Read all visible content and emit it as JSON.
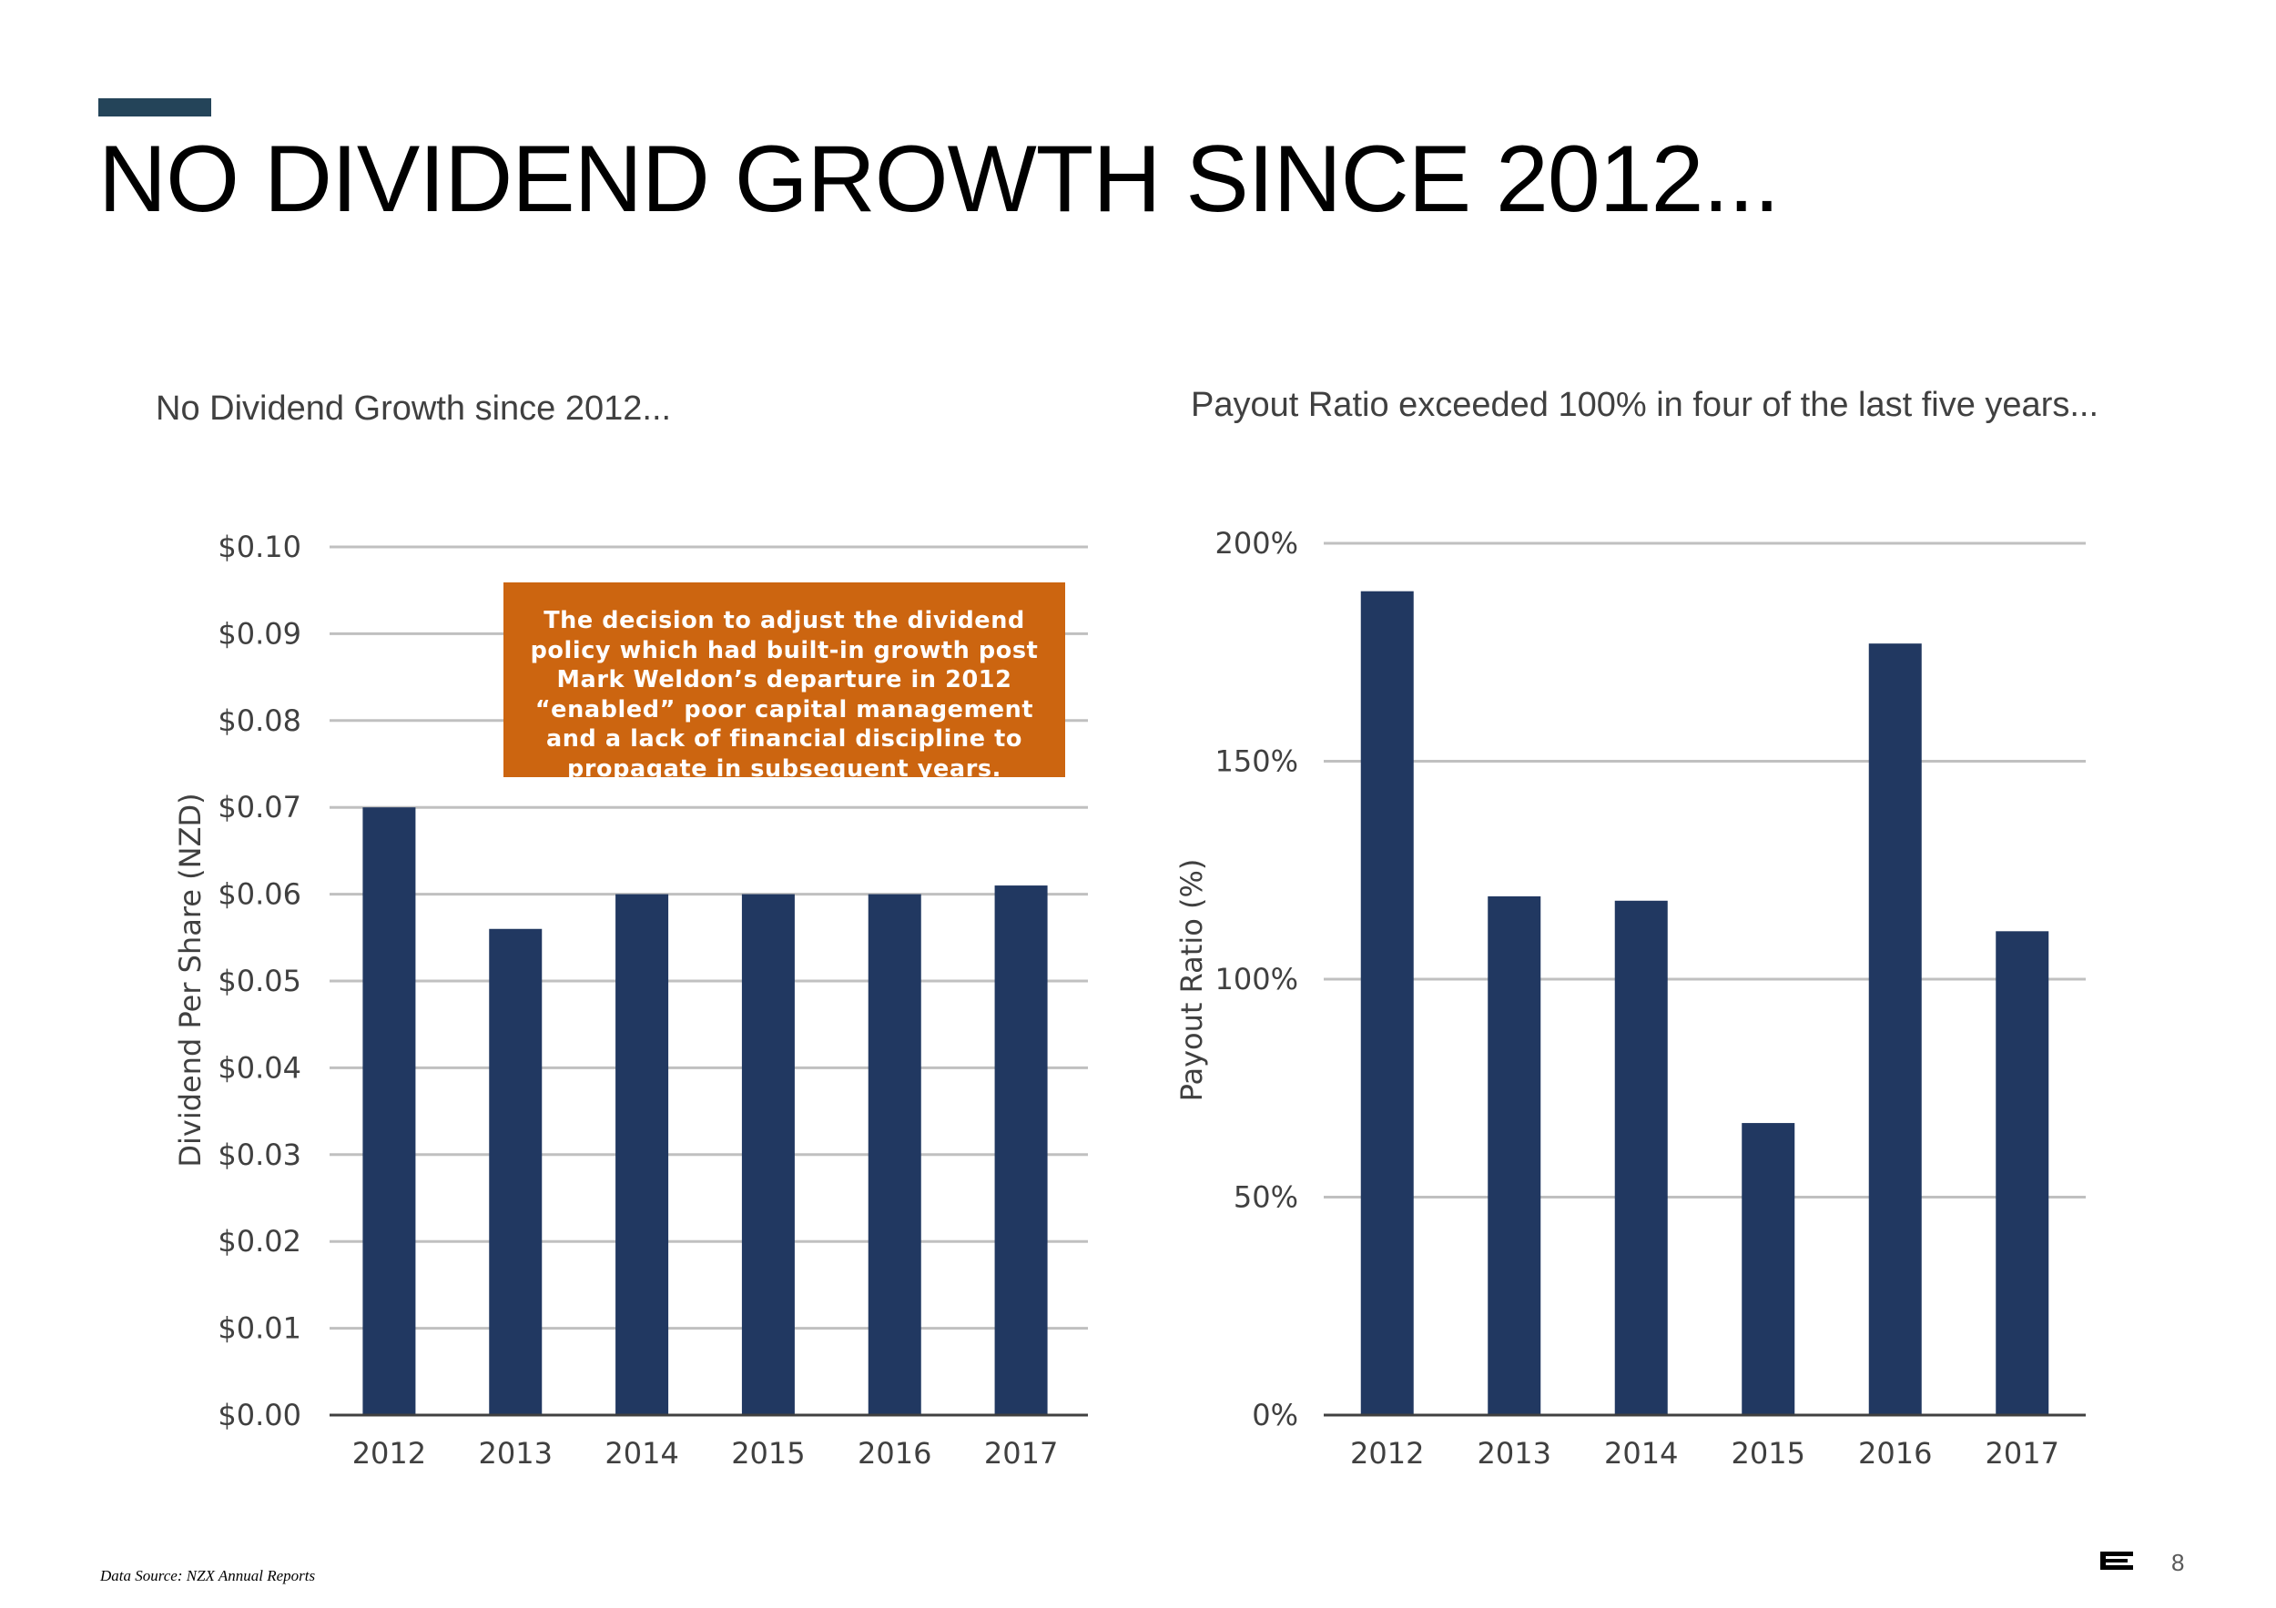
{
  "title": "NO DIVIDEND GROWTH SINCE 2012...",
  "footer": {
    "source": "Data Source: NZX Annual Reports",
    "page_number": "8",
    "logo_icon": "company-logo-icon"
  },
  "annotation": "The decision to adjust the dividend policy which had built-in growth post Mark Weldon’s departure in 2012 “enabled” poor capital management and a lack of financial discipline to propagate in subsequent years.",
  "colors": {
    "bar": "#213861",
    "accent": "#244459",
    "annotation_bg": "#cc6510",
    "grid": "#c0c0c0"
  },
  "chart_data": [
    {
      "type": "bar",
      "title": "No Dividend Growth since 2012...",
      "xlabel": "",
      "ylabel": "Dividend Per Share (NZD)",
      "categories": [
        "2012",
        "2013",
        "2014",
        "2015",
        "2016",
        "2017"
      ],
      "values": [
        0.07,
        0.056,
        0.06,
        0.06,
        0.06,
        0.061
      ],
      "ylim": [
        0,
        0.1
      ],
      "yticks": [
        "$0.00",
        "$0.01",
        "$0.02",
        "$0.03",
        "$0.04",
        "$0.05",
        "$0.06",
        "$0.07",
        "$0.08",
        "$0.09",
        "$0.10"
      ],
      "grid": true
    },
    {
      "type": "bar",
      "title": "Payout Ratio exceeded 100% in four of the last five years...",
      "xlabel": "",
      "ylabel": "Payout Ratio (%)",
      "categories": [
        "2012",
        "2013",
        "2014",
        "2015",
        "2016",
        "2017"
      ],
      "values": [
        189,
        119,
        118,
        67,
        177,
        111
      ],
      "ylim": [
        0,
        200
      ],
      "yticks": [
        "0%",
        "50%",
        "100%",
        "150%",
        "200%"
      ],
      "grid": true
    }
  ]
}
